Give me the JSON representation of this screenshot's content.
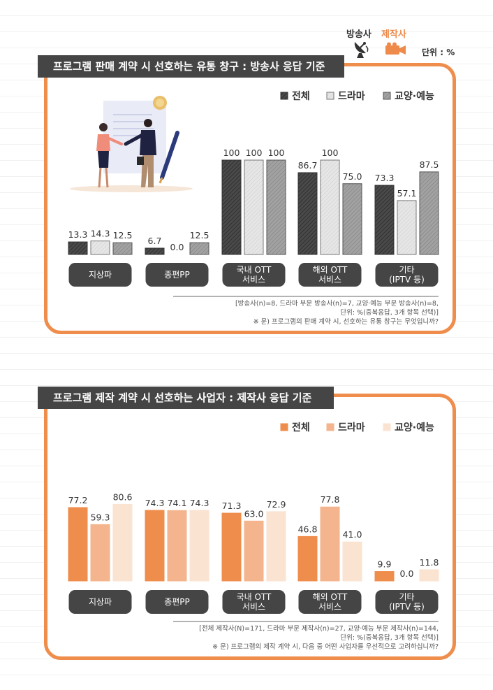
{
  "header": {
    "broadcaster_label": "방송사",
    "producer_label": "제작사",
    "unit_label": "단위 : %",
    "broadcaster_icon": "satellite-dish-icon",
    "producer_icon": "video-camera-icon"
  },
  "colors": {
    "orange": "#ef8d4c",
    "banner": "#454545",
    "dark_bar": "#4a4a4a",
    "light_bar": "#e3e3e3",
    "mid_bar": "#9b9b9b",
    "peach_bar": "#f3b48e",
    "cream_bar": "#fbe3d2"
  },
  "chart_data": [
    {
      "type": "bar",
      "title": "프로그램 판매 계약 시 선호하는 유통 창구 : 방송사 응답 기준",
      "categories": [
        "지상파",
        "종편PP",
        "국내 OTT\n서비스",
        "해외 OTT\n서비스",
        "기타\n(IPTV 등)"
      ],
      "series": [
        {
          "name": "전체",
          "values": [
            13.3,
            6.7,
            100,
            86.7,
            73.3
          ],
          "labels": [
            "13.3",
            "6.7",
            "100",
            "86.7",
            "73.3"
          ]
        },
        {
          "name": "드라마",
          "values": [
            14.3,
            0.0,
            100,
            100,
            57.1
          ],
          "labels": [
            "14.3",
            "0.0",
            "100",
            "100",
            "57.1"
          ]
        },
        {
          "name": "교양·예능",
          "values": [
            12.5,
            12.5,
            100,
            75.0,
            87.5
          ],
          "labels": [
            "12.5",
            "12.5",
            "100",
            "75.0",
            "87.5"
          ]
        }
      ],
      "ylim": [
        0,
        100
      ],
      "legend_position": "top-right",
      "note_lines": [
        "[방송사(n)=8, 드라마 부문 방송사(n)=7, 교양·예능 부문 방송사(n)=8,",
        "단위: %(중복응답, 3개 항목 선택)]",
        "※ 문) 프로그램의 판매 계약 시, 선호하는 유통 창구는 무엇입니까?"
      ]
    },
    {
      "type": "bar",
      "title": "프로그램 제작 계약 시 선호하는 사업자 : 제작사 응답 기준",
      "categories": [
        "지상파",
        "종편PP",
        "국내 OTT\n서비스",
        "해외 OTT\n서비스",
        "기타\n(IPTV 등)"
      ],
      "series": [
        {
          "name": "전체",
          "values": [
            77.2,
            74.3,
            71.3,
            46.8,
            9.9
          ],
          "labels": [
            "77.2",
            "74.3",
            "71.3",
            "46.8",
            "9.9"
          ]
        },
        {
          "name": "드라마",
          "values": [
            59.3,
            74.1,
            63.0,
            77.8,
            0.0
          ],
          "labels": [
            "59.3",
            "74.1",
            "63.0",
            "77.8",
            "0.0"
          ]
        },
        {
          "name": "교양·예능",
          "values": [
            80.6,
            74.3,
            72.9,
            41.0,
            11.8
          ],
          "labels": [
            "80.6",
            "74.3",
            "72.9",
            "41.0",
            "11.8"
          ]
        }
      ],
      "ylim": [
        0,
        100
      ],
      "legend_position": "top-right",
      "note_lines": [
        "[전체 제작사(N)=171, 드라마 부문 제작사(n)=27, 교양·예능 부문 제작사(n)=144,",
        "단위: %(중복응답, 3개 항목 선택)]",
        "※ 문) 프로그램의 제작 계약 시, 다음 중 어떤 사업자를 우선적으로 고려하십니까?"
      ]
    }
  ]
}
